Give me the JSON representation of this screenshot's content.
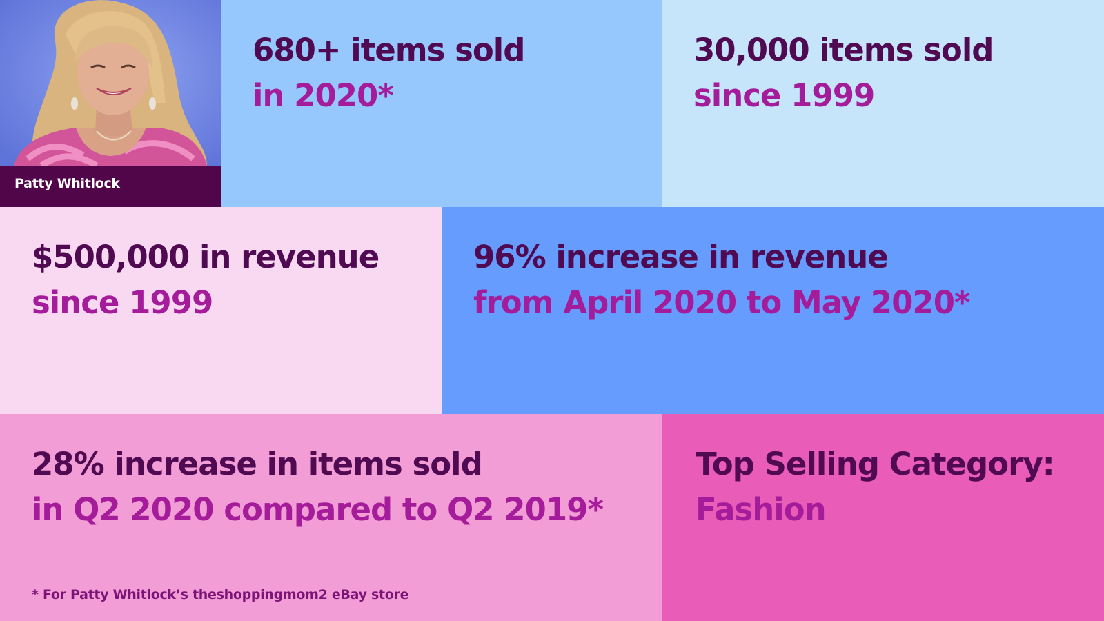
{
  "profile": {
    "name": "Patty Whitlock",
    "photo_icon": "person-portrait-photo"
  },
  "stats": {
    "items_2020": {
      "line1": "680+ items sold",
      "line2": "in 2020*"
    },
    "items_since_1999": {
      "line1": "30,000 items sold",
      "line2": "since 1999"
    },
    "revenue_since_1999": {
      "line1": "$500,000 in revenue",
      "line2": "since 1999"
    },
    "revenue_increase": {
      "line1": "96% increase in revenue",
      "line2": "from April 2020 to May 2020*"
    },
    "items_increase": {
      "line1": "28% increase in items sold",
      "line2": "in Q2 2020 compared to Q2 2019*"
    },
    "top_category": {
      "line1": "Top Selling Category:",
      "line2": "Fashion"
    }
  },
  "footnote": "* For Patty Whitlock’s theshoppingmom2 eBay store",
  "colors": {
    "dark_purple": "#4f0a52",
    "magenta": "#a41c9a",
    "caption_bg": "#52064a",
    "tile_light_blue": "#96c8fe",
    "tile_pale_blue": "#c6e4fa",
    "tile_pale_pink": "#f9d8f1",
    "tile_blue": "#679cff",
    "tile_pink": "#f39dd7",
    "tile_hot_pink": "#e95cb7"
  }
}
